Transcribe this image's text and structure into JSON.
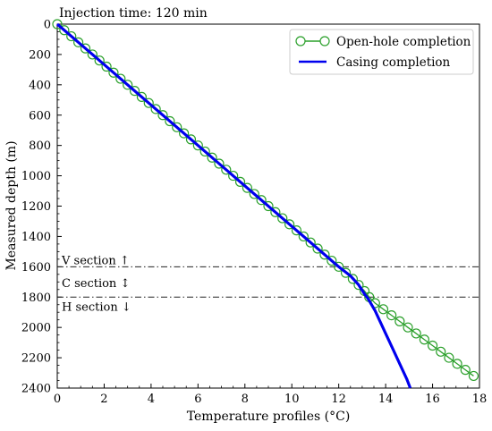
{
  "chart_data": {
    "type": "line",
    "title": "Injection time: 120 min",
    "xlabel": "Temperature profiles (°C)",
    "ylabel": "Measured depth (m)",
    "xlim": [
      0,
      18
    ],
    "ylim": [
      2400,
      0
    ],
    "y_inverted": true,
    "grid": false,
    "legend_position": "top-right",
    "x_ticks": [
      "0",
      "2",
      "4",
      "6",
      "8",
      "10",
      "12",
      "14",
      "16",
      "18"
    ],
    "y_ticks": [
      "0",
      "200",
      "400",
      "600",
      "800",
      "1000",
      "1200",
      "1400",
      "1600",
      "1800",
      "2000",
      "2200",
      "2400"
    ],
    "series": [
      {
        "name": "Open-hole completion",
        "style": "line-with-open-circles",
        "color": "#2ca02c",
        "x": [
          0.0,
          0.3,
          0.6,
          0.9,
          1.2,
          1.5,
          1.8,
          2.1,
          2.4,
          2.7,
          3.0,
          3.3,
          3.6,
          3.9,
          4.2,
          4.5,
          4.8,
          5.1,
          5.4,
          5.7,
          6.0,
          6.3,
          6.6,
          6.9,
          7.2,
          7.5,
          7.8,
          8.1,
          8.4,
          8.7,
          9.0,
          9.3,
          9.6,
          9.9,
          10.2,
          10.5,
          10.8,
          11.1,
          11.4,
          11.7,
          12.0,
          12.3,
          12.6,
          12.85,
          13.1,
          13.3,
          13.55,
          13.9,
          14.25,
          14.6,
          14.95,
          15.3,
          15.65,
          16.0,
          16.35,
          16.7,
          17.05,
          17.4,
          17.75
        ],
        "y": [
          0,
          40,
          80,
          120,
          160,
          200,
          240,
          280,
          320,
          360,
          400,
          440,
          480,
          520,
          560,
          600,
          640,
          680,
          720,
          760,
          800,
          840,
          880,
          920,
          960,
          1000,
          1040,
          1080,
          1120,
          1160,
          1200,
          1240,
          1280,
          1320,
          1360,
          1400,
          1440,
          1480,
          1520,
          1560,
          1600,
          1640,
          1680,
          1720,
          1760,
          1800,
          1840,
          1880,
          1920,
          1960,
          2000,
          2040,
          2080,
          2120,
          2160,
          2200,
          2240,
          2280,
          2320
        ]
      },
      {
        "name": "Casing completion",
        "style": "solid-line",
        "color": "#0000ee",
        "x": [
          0.0,
          1.5,
          3.0,
          4.5,
          6.0,
          7.5,
          9.0,
          10.5,
          12.0,
          12.5,
          12.85,
          13.1,
          13.25,
          13.4,
          13.55,
          13.7,
          13.85,
          14.0,
          14.15,
          14.3,
          14.45,
          14.6,
          14.75,
          14.9,
          15.05
        ],
        "y": [
          0,
          200,
          400,
          600,
          800,
          1000,
          1200,
          1400,
          1600,
          1660,
          1720,
          1780,
          1810,
          1850,
          1890,
          1940,
          1990,
          2040,
          2090,
          2140,
          2190,
          2240,
          2290,
          2340,
          2400
        ]
      }
    ],
    "reference_lines": [
      {
        "y": 1600,
        "style": "dash-dot"
      },
      {
        "y": 1800,
        "style": "dash-dot"
      }
    ],
    "annotations": [
      {
        "text": "V section ↑",
        "y": 1560
      },
      {
        "text": "C section ↕",
        "y": 1710
      },
      {
        "text": "H section ↓",
        "y": 1865
      }
    ]
  }
}
